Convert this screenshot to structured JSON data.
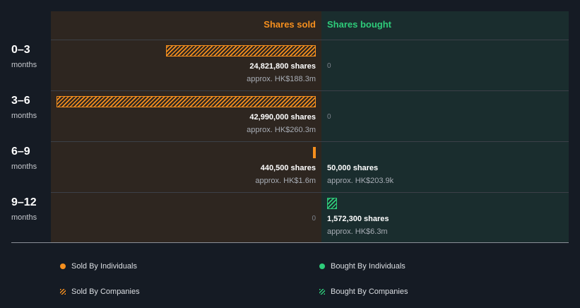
{
  "chart_data": {
    "type": "bar",
    "orientation": "horizontal",
    "headers": {
      "sold": "Shares sold",
      "bought": "Shares bought"
    },
    "categories": [
      {
        "period": "0–3",
        "unit": "months"
      },
      {
        "period": "3–6",
        "unit": "months"
      },
      {
        "period": "6–9",
        "unit": "months"
      },
      {
        "period": "9–12",
        "unit": "months"
      }
    ],
    "series": [
      {
        "name": "Sold By Individuals",
        "side": "sold",
        "pattern": "solid",
        "values": [
          0,
          0,
          440500,
          0
        ]
      },
      {
        "name": "Sold By Companies",
        "side": "sold",
        "pattern": "hatched",
        "values": [
          24821800,
          42990000,
          0,
          0
        ]
      },
      {
        "name": "Bought By Individuals",
        "side": "bought",
        "pattern": "solid",
        "values": [
          0,
          0,
          50000,
          0
        ]
      },
      {
        "name": "Bought By Companies",
        "side": "bought",
        "pattern": "hatched",
        "values": [
          0,
          0,
          0,
          1572300
        ]
      }
    ],
    "rows": [
      {
        "sold_label": "24,821,800 shares",
        "sold_approx": "approx. HK$188.3m",
        "bought_label": "",
        "bought_approx": "",
        "bought_zero": "0",
        "sold_zero": ""
      },
      {
        "sold_label": "42,990,000 shares",
        "sold_approx": "approx. HK$260.3m",
        "bought_label": "",
        "bought_approx": "",
        "bought_zero": "0",
        "sold_zero": ""
      },
      {
        "sold_label": "440,500 shares",
        "sold_approx": "approx. HK$1.6m",
        "bought_label": "50,000 shares",
        "bought_approx": "approx. HK$203.9k",
        "bought_zero": "",
        "sold_zero": ""
      },
      {
        "sold_label": "",
        "sold_approx": "",
        "bought_label": "1,572,300 shares",
        "bought_approx": "approx. HK$6.3m",
        "bought_zero": "",
        "sold_zero": "0"
      }
    ],
    "sold_max": 42990000,
    "legend": [
      "Sold By Individuals",
      "Bought By Individuals",
      "Sold By Companies",
      "Bought By Companies"
    ]
  },
  "colors": {
    "sold": "#f58f1e",
    "bought": "#2ecc7a",
    "background": "#151b24"
  }
}
